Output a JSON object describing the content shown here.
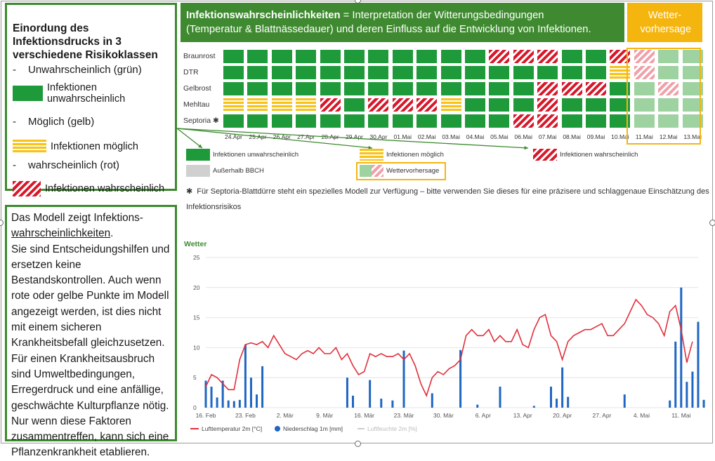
{
  "legend_panel": {
    "title": "Einordung des Infektionsdrucks in 3 verschiedene Risikoklassen",
    "class_green": "Unwahrscheinlich (grün)",
    "label_green": "Infektionen unwahrscheinlich",
    "class_yellow": "Möglich (gelb)",
    "label_yellow": "Infektionen möglich",
    "class_red": "wahrscheinlich (rot)",
    "label_red": "Infektionen wahrscheinlich",
    "dash": "-"
  },
  "note_panel": {
    "line1": "Das Modell zeigt Infektions-",
    "line2": "wahrscheinlichkeiten",
    "line2_suffix": ".",
    "rest": "Sie sind Entscheidungshilfen und ersetzen keine Bestandskontrollen. Auch wenn rote oder gelbe Punkte im Modell angezeigt werden, ist dies nicht mit einem sicheren Krankheitsbefall gleichzusetzen. Für einen Krankheitsausbruch sind Umweltbedingungen, Erregerdruck und eine anfällige, geschwächte Kulturpflanze nötig. Nur wenn diese Faktoren zusammentreffen, kann sich eine Pflanzenkrankheit etablieren."
  },
  "header": {
    "title_bold": "Infektionswahrscheinlichkeiten",
    "title_rest": " = Interpretation der Witterungsbedingungen",
    "line2": "(Temperatur & Blattnässedauer) und deren Einfluss auf die Entwicklung von Infektionen.",
    "forecast": "Wetter-vorhersage"
  },
  "grid": {
    "rows": [
      "Braunrost",
      "DTR",
      "Gelbrost",
      "Mehltau",
      "Septoria ✱"
    ],
    "dates": [
      "24.Apr",
      "25.Apr",
      "26.Apr",
      "27.Apr",
      "28.Apr",
      "29.Apr",
      "30.Apr",
      "01.Mai",
      "02.Mai",
      "03.Mai",
      "04.Mai",
      "05.Mai",
      "06.Mai",
      "07.Mai",
      "08.Mai",
      "09.Mai",
      "10.Mai",
      "11.Mai",
      "12.Mai",
      "13.Mai"
    ],
    "cells": [
      [
        "g",
        "g",
        "g",
        "g",
        "g",
        "g",
        "g",
        "g",
        "g",
        "g",
        "g",
        "r",
        "r",
        "r",
        "g",
        "g",
        "r",
        "fr",
        "fg",
        "fg"
      ],
      [
        "g",
        "g",
        "g",
        "g",
        "g",
        "g",
        "g",
        "g",
        "g",
        "g",
        "g",
        "g",
        "g",
        "g",
        "g",
        "g",
        "y",
        "fr",
        "fg",
        "fg"
      ],
      [
        "g",
        "g",
        "g",
        "g",
        "g",
        "g",
        "g",
        "g",
        "g",
        "g",
        "g",
        "g",
        "g",
        "r",
        "r",
        "r",
        "g",
        "fg",
        "fr",
        "fg"
      ],
      [
        "y",
        "y",
        "y",
        "y",
        "r",
        "g",
        "r",
        "r",
        "r",
        "y",
        "g",
        "g",
        "g",
        "r",
        "g",
        "g",
        "g",
        "fg",
        "fg",
        "fg"
      ],
      [
        "g",
        "g",
        "g",
        "g",
        "g",
        "g",
        "g",
        "g",
        "g",
        "g",
        "g",
        "g",
        "r",
        "r",
        "g",
        "g",
        "g",
        "fg",
        "fg",
        "fg"
      ]
    ]
  },
  "grid_legend": {
    "unwahrscheinlich": "Infektionen unwahrscheinlich",
    "moeglich": "Infektionen möglich",
    "wahrscheinlich": "Infektionen wahrscheinlich",
    "ausserhalb": "Außerhalb BBCH",
    "vorhersage": "Wettervorhersage"
  },
  "footnote": {
    "star": "✱",
    "text": "Für Septoria-Blattdürre steht ein spezielles Modell zur Verfügung – bitte verwenden Sie dieses für eine präzisere und schlaggenaue Einschätzung des Infektionsrisikos"
  },
  "colors": {
    "green": "#1f9a3a",
    "yellow": "#f7c21a",
    "red": "#d7182a",
    "header_green": "#3f8a30",
    "forecast_orange": "#f5b50f",
    "temp_line": "#e0303b",
    "rain_bar": "#1f66c2"
  },
  "chart_data": {
    "type": "line",
    "title": "Wetter",
    "ylim": [
      0,
      25
    ],
    "yticks": [
      0,
      5,
      10,
      15,
      20,
      25
    ],
    "xlim": [
      0,
      87
    ],
    "xtick_labels": [
      "16. Feb",
      "23. Feb",
      "2. Mär",
      "9. Mär",
      "16. Mär",
      "23. Mär",
      "30. Mär",
      "6. Apr",
      "13. Apr",
      "20. Apr",
      "27. Apr",
      "4. Mai",
      "11. Mai"
    ],
    "xtick_pos": [
      0,
      7,
      14,
      21,
      28,
      35,
      42,
      49,
      56,
      63,
      70,
      77,
      84
    ],
    "grid": true,
    "legend": [
      "Lufttemperatur 2m [°C]",
      "Niederschlag 1m [mm]",
      "Luftfeuchte 2m [%]"
    ],
    "series": [
      {
        "name": "Lufttemperatur 2m [°C]",
        "kind": "line",
        "x": [
          0,
          1,
          2,
          3,
          4,
          5,
          6,
          7,
          8,
          9,
          10,
          11,
          12,
          13,
          14,
          15,
          16,
          17,
          18,
          19,
          20,
          21,
          22,
          23,
          24,
          25,
          26,
          27,
          28,
          29,
          30,
          31,
          32,
          33,
          34,
          35,
          36,
          37,
          38,
          39,
          40,
          41,
          42,
          43,
          44,
          45,
          46,
          47,
          48,
          49,
          50,
          51,
          52,
          53,
          54,
          55,
          56,
          57,
          58,
          59,
          60,
          61,
          62,
          63,
          64,
          65,
          66,
          67,
          68,
          69,
          70,
          71,
          72,
          73,
          74,
          75,
          76,
          77,
          78,
          79,
          80,
          81,
          82,
          83,
          84,
          85,
          86
        ],
        "values": [
          3.5,
          5.5,
          5,
          4,
          3,
          3,
          8,
          10.5,
          10.8,
          10.5,
          11,
          10,
          12,
          10.5,
          9,
          8.5,
          8,
          9,
          9.5,
          9,
          10,
          9,
          9,
          10,
          8,
          9,
          7,
          5.5,
          6,
          9,
          8.5,
          9,
          8.5,
          8.5,
          9,
          8,
          9,
          7,
          4,
          2,
          5,
          6,
          5.5,
          6.5,
          7,
          8,
          12,
          13,
          12,
          12,
          13,
          11,
          12,
          11,
          11,
          13,
          10.5,
          10,
          13,
          15,
          15.5,
          12,
          11,
          8,
          11,
          12,
          12.5,
          13,
          13,
          13.5,
          14,
          12,
          12,
          13,
          14,
          16,
          18,
          17,
          15.5,
          15,
          14,
          12,
          16,
          17,
          13,
          7.5,
          11
        ]
      },
      {
        "name": "Niederschlag 1m [mm]",
        "kind": "bar",
        "x": [
          0,
          1,
          2,
          3,
          4,
          5,
          6,
          7,
          8,
          9,
          10,
          25,
          26,
          29,
          31,
          33,
          35,
          40,
          45,
          48,
          52,
          58,
          61,
          62,
          63,
          64,
          74,
          82,
          83,
          84,
          85,
          86,
          87,
          88
        ],
        "values": [
          4.5,
          3.5,
          1.7,
          4.5,
          1.2,
          1.1,
          1.3,
          10.5,
          5,
          2.2,
          6.9,
          5,
          2,
          4.6,
          1.5,
          1.2,
          9.5,
          2.4,
          9.6,
          0.5,
          3.5,
          0.3,
          3.5,
          1.5,
          6.7,
          1.8,
          2.2,
          1.2,
          11,
          20,
          4.3,
          6,
          14.3,
          1.3
        ]
      }
    ]
  }
}
